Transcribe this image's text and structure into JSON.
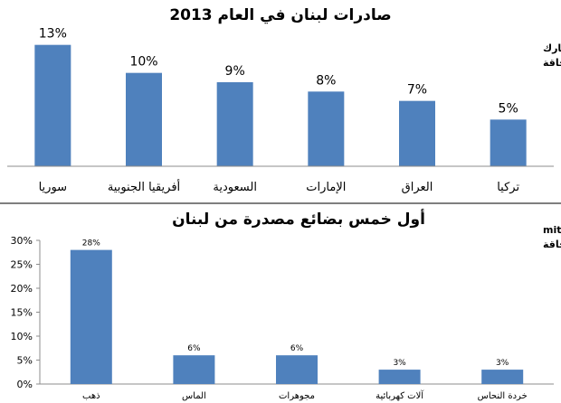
{
  "chart_data": [
    {
      "type": "bar",
      "title": "صادرات لبنان في العام 2013",
      "source_lines": [
        "مصدر: الجمارك",
        "د.جاسم عجاقة"
      ],
      "categories": [
        "سوريا",
        "أفريقيا الجنوبية",
        "السعودية",
        "الإمارات",
        "العراق",
        "تركيا"
      ],
      "values": [
        13,
        10,
        9,
        8,
        7,
        5
      ],
      "value_labels": [
        "13%",
        "10%",
        "9%",
        "8%",
        "7%",
        "5%"
      ],
      "ylim": [
        0,
        15
      ],
      "grid": false,
      "bar_color": "#4f81bd"
    },
    {
      "type": "bar",
      "title": "أول خمس بضائع مصدرة من لبنان",
      "source_lines": [
        "مصدر: mit.edu",
        "د.جاسم عجاقة"
      ],
      "categories": [
        "ذهب",
        "الماس",
        "مجوهرات",
        "آلات كهربائية",
        "خردة النحاس"
      ],
      "values": [
        28,
        6,
        6,
        3,
        3
      ],
      "value_labels": [
        "28%",
        "6%",
        "6%",
        "3%",
        "3%"
      ],
      "yticks": [
        "0%",
        "5%",
        "10%",
        "15%",
        "20%",
        "25%",
        "30%"
      ],
      "ylim": [
        0,
        30
      ],
      "grid": false,
      "bar_color": "#4f81bd"
    }
  ]
}
